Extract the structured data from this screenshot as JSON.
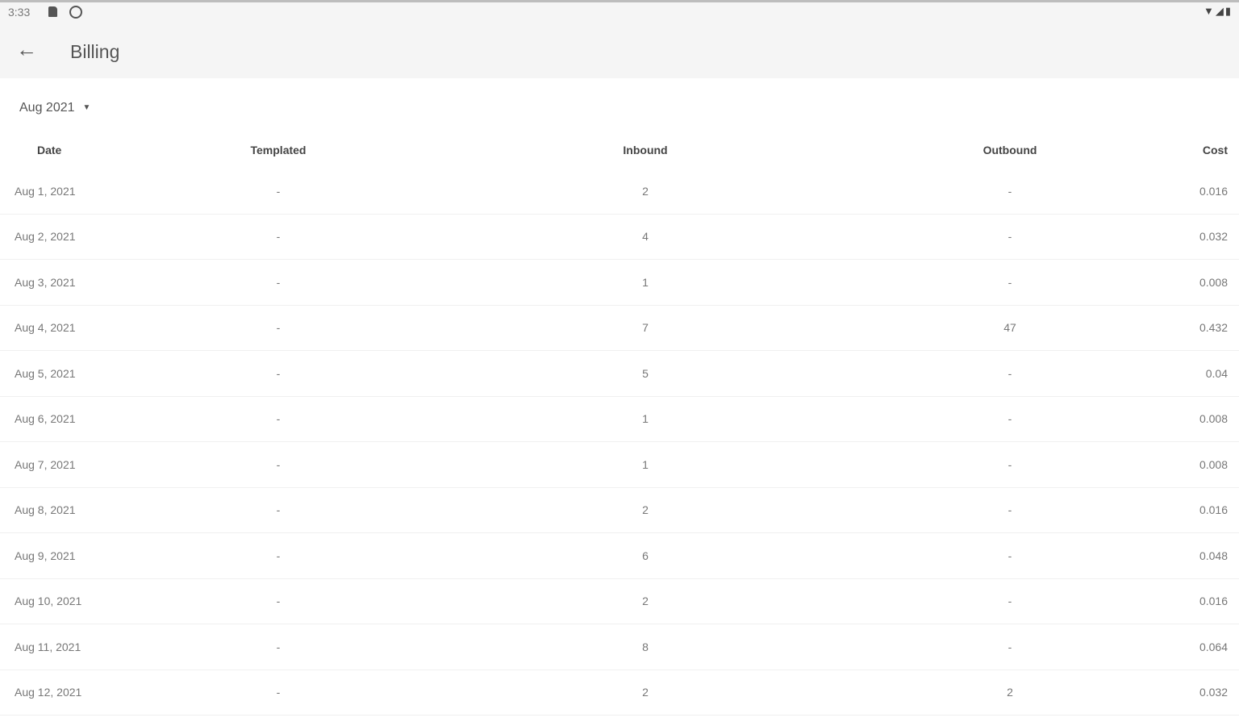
{
  "status_bar": {
    "time": "3:33",
    "icons": [
      "sd-card-icon",
      "sync-icon",
      "wifi-icon",
      "signal-icon",
      "battery-icon"
    ]
  },
  "app_bar": {
    "title": "Billing",
    "back_icon": "arrow-back-icon"
  },
  "month_selector": {
    "value": "Aug 2021",
    "icon": "dropdown-caret-icon"
  },
  "table": {
    "headers": {
      "date": "Date",
      "templated": "Templated",
      "inbound": "Inbound",
      "outbound": "Outbound",
      "cost": "Cost"
    },
    "rows": [
      {
        "date": "Aug 1, 2021",
        "templated": "-",
        "inbound": "2",
        "outbound": "-",
        "cost": "0.016"
      },
      {
        "date": "Aug 2, 2021",
        "templated": "-",
        "inbound": "4",
        "outbound": "-",
        "cost": "0.032"
      },
      {
        "date": "Aug 3, 2021",
        "templated": "-",
        "inbound": "1",
        "outbound": "-",
        "cost": "0.008"
      },
      {
        "date": "Aug 4, 2021",
        "templated": "-",
        "inbound": "7",
        "outbound": "47",
        "cost": "0.432"
      },
      {
        "date": "Aug 5, 2021",
        "templated": "-",
        "inbound": "5",
        "outbound": "-",
        "cost": "0.04"
      },
      {
        "date": "Aug 6, 2021",
        "templated": "-",
        "inbound": "1",
        "outbound": "-",
        "cost": "0.008"
      },
      {
        "date": "Aug 7, 2021",
        "templated": "-",
        "inbound": "1",
        "outbound": "-",
        "cost": "0.008"
      },
      {
        "date": "Aug 8, 2021",
        "templated": "-",
        "inbound": "2",
        "outbound": "-",
        "cost": "0.016"
      },
      {
        "date": "Aug 9, 2021",
        "templated": "-",
        "inbound": "6",
        "outbound": "-",
        "cost": "0.048"
      },
      {
        "date": "Aug 10, 2021",
        "templated": "-",
        "inbound": "2",
        "outbound": "-",
        "cost": "0.016"
      },
      {
        "date": "Aug 11, 2021",
        "templated": "-",
        "inbound": "8",
        "outbound": "-",
        "cost": "0.064"
      },
      {
        "date": "Aug 12, 2021",
        "templated": "-",
        "inbound": "2",
        "outbound": "2",
        "cost": "0.032"
      }
    ]
  }
}
